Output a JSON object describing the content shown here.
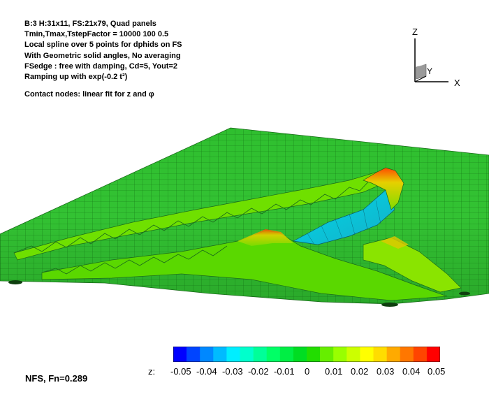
{
  "header": {
    "lines": [
      "B:3 H:31x11, FS:21x79, Quad panels",
      "Tmin,Tmax,TstepFactor =  10000  100  0.5",
      "Local spline over 5 points for dphids on FS",
      "With Geometric solid angles, No averaging",
      "FSedge : free with damping, Cd=5, Yout=2",
      "Ramping up with exp(-0.2 t²)"
    ],
    "contact": "Contact nodes: linear fit for z and φ"
  },
  "axes": {
    "z": "Z",
    "y": "Y",
    "x": "X"
  },
  "colorbar": {
    "var_label": "z:",
    "ticks": [
      "-0.05",
      "-0.04",
      "-0.03",
      "-0.02",
      "-0.01",
      "0",
      "0.01",
      "0.02",
      "0.03",
      "0.04",
      "0.05"
    ],
    "colors": [
      "#0000ff",
      "#0044ff",
      "#0088ff",
      "#00bbff",
      "#00eeff",
      "#00ffcc",
      "#00ff99",
      "#00ff66",
      "#00ee44",
      "#00dd22",
      "#22dd00",
      "#66ee00",
      "#99ff00",
      "#ccff00",
      "#ffff00",
      "#ffdd00",
      "#ffaa00",
      "#ff7700",
      "#ff4400",
      "#ff0000"
    ]
  },
  "footer": "NFS, Fn=0.289"
}
